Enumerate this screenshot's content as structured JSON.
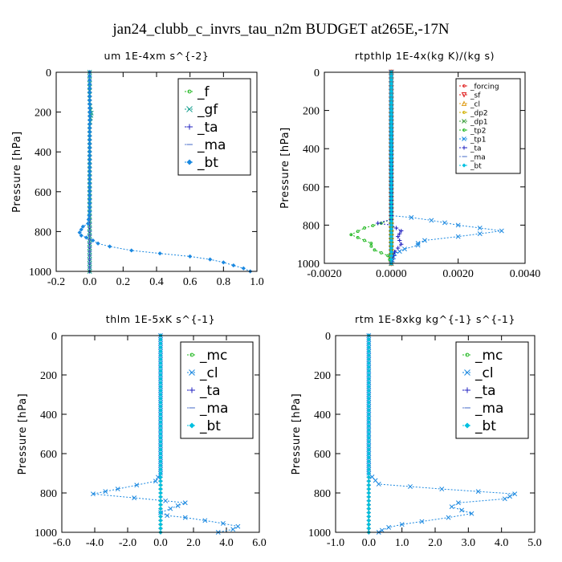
{
  "figure": {
    "title": "jan24_clubb_c_invrs_tau_n2m  BUDGET at265E,-17N"
  },
  "chart_data": [
    {
      "type": "line",
      "title": "um  1E-4xm s^{-2}",
      "ylabel": "Pressure [hPa]",
      "xlim": [
        -0.2,
        1.0
      ],
      "ylim": [
        1000,
        0
      ],
      "xticks": [
        -0.2,
        0.0,
        0.2,
        0.4,
        0.6,
        0.8,
        1.0
      ],
      "xtick_labels": [
        "-0.2",
        "0.0",
        "0.2",
        "0.4",
        "0.6",
        "0.8",
        "1.0"
      ],
      "yticks": [
        0,
        200,
        400,
        600,
        800,
        1000
      ],
      "ytick_labels": [
        "0",
        "200",
        "400",
        "600",
        "800",
        "1000"
      ],
      "legend_position": "top-right",
      "legend_size": "large",
      "series": [
        {
          "name": "_f",
          "color": "#22b822",
          "marker": "circle",
          "x": [
            0.0,
            0.0
          ],
          "y": [
            0,
            1000
          ]
        },
        {
          "name": "_gf",
          "color": "#1aa090",
          "marker": "x",
          "x": [
            0.0,
            0.0,
            0.005,
            0.01,
            0.005,
            0.0,
            0.0
          ],
          "y": [
            0,
            150,
            190,
            205,
            230,
            270,
            1000
          ]
        },
        {
          "name": "_ta",
          "color": "#2020c0",
          "marker": "plus",
          "x": [
            0.0,
            0.0
          ],
          "y": [
            0,
            1000
          ]
        },
        {
          "name": "_ma",
          "color": "#6080d0",
          "marker": "dash",
          "x": [
            0.0,
            0.0
          ],
          "y": [
            0,
            1000
          ]
        },
        {
          "name": "_bt",
          "color": "#1a88e0",
          "marker": "diamond",
          "x": [
            0.0,
            0.0,
            0.0,
            -0.01,
            -0.04,
            -0.05,
            -0.06,
            -0.05,
            -0.02,
            0.02,
            0.05,
            0.12,
            0.25,
            0.42,
            0.6,
            0.72,
            0.8,
            0.86,
            0.92,
            0.96
          ],
          "y": [
            0,
            200,
            700,
            760,
            775,
            790,
            805,
            820,
            830,
            845,
            860,
            875,
            895,
            910,
            925,
            940,
            955,
            970,
            985,
            1000
          ]
        }
      ]
    },
    {
      "type": "line",
      "title": "rtpthlp  1E-4x(kg K)/(kg s)",
      "ylabel": "Pressure [hPa]",
      "xlim": [
        -0.002,
        0.004
      ],
      "ylim": [
        1000,
        0
      ],
      "xticks": [
        -0.002,
        0.0,
        0.002,
        0.004
      ],
      "xtick_labels": [
        "-0.0020",
        "0.0000",
        "0.0020",
        "0.0040"
      ],
      "yticks": [
        0,
        200,
        400,
        600,
        800,
        1000
      ],
      "ytick_labels": [
        "0",
        "200",
        "400",
        "600",
        "800",
        "1000"
      ],
      "legend_position": "top-right",
      "legend_size": "small",
      "series": [
        {
          "name": "_forcing",
          "color": "#e02020",
          "marker": "circle",
          "x": [
            0,
            0
          ],
          "y": [
            0,
            1000
          ]
        },
        {
          "name": "_sf",
          "color": "#e02020",
          "marker": "triangle-down",
          "x": [
            0,
            0
          ],
          "y": [
            0,
            1000
          ]
        },
        {
          "name": "_cl",
          "color": "#e0a020",
          "marker": "triangle-up",
          "x": [
            0,
            0
          ],
          "y": [
            0,
            1000
          ]
        },
        {
          "name": "_dp2",
          "color": "#d0b000",
          "marker": "circle",
          "x": [
            0,
            0
          ],
          "y": [
            0,
            1000
          ]
        },
        {
          "name": "_dp1",
          "color": "#40a040",
          "marker": "x",
          "x": [
            0,
            0
          ],
          "y": [
            0,
            1000
          ]
        },
        {
          "name": "_tp2",
          "color": "#22b822",
          "marker": "circle",
          "x": [
            0.0,
            0.0,
            -0.0003,
            -0.0008,
            -0.0012,
            -0.0008,
            -0.0006,
            -0.0006,
            -0.0005,
            -0.0001,
            0.0
          ],
          "y": [
            0,
            770,
            790,
            815,
            850,
            880,
            895,
            910,
            930,
            960,
            1000
          ]
        },
        {
          "name": "_tp1",
          "color": "#1a88e0",
          "marker": "x",
          "x": [
            0.0,
            0.0,
            0.0006,
            0.0012,
            0.002,
            0.0033,
            0.002,
            0.001,
            0.0008,
            0.0008,
            0.0004,
            0.0001,
            0.0
          ],
          "y": [
            0,
            750,
            760,
            775,
            800,
            830,
            860,
            880,
            895,
            905,
            925,
            950,
            1000
          ]
        },
        {
          "name": "_ta",
          "color": "#2020c0",
          "marker": "plus",
          "x": [
            0.0,
            0.0,
            -0.0004,
            0.0,
            0.0003,
            0.0002,
            0.0003,
            0.0001,
            0.0
          ],
          "y": [
            0,
            770,
            790,
            800,
            830,
            860,
            900,
            940,
            1000
          ]
        },
        {
          "name": "_ma",
          "color": "#6080d0",
          "marker": "dash",
          "x": [
            0,
            0
          ],
          "y": [
            0,
            1000
          ]
        },
        {
          "name": "_bt",
          "color": "#00c0e0",
          "marker": "diamond",
          "x": [
            0,
            0
          ],
          "y": [
            0,
            1000
          ]
        }
      ]
    },
    {
      "type": "line",
      "title": "thlm  1E-5xK s^{-1}",
      "ylabel": "Pressure [hPa]",
      "xlim": [
        -6.0,
        6.0
      ],
      "ylim": [
        1000,
        0
      ],
      "xticks": [
        -6,
        -4,
        -2,
        0,
        2,
        4,
        6
      ],
      "xtick_labels": [
        "-6.0",
        "-4.0",
        "-2.0",
        "0.0",
        "2.0",
        "4.0",
        "6.0"
      ],
      "yticks": [
        0,
        200,
        400,
        600,
        800,
        1000
      ],
      "ytick_labels": [
        "0",
        "200",
        "400",
        "600",
        "800",
        "1000"
      ],
      "legend_position": "top-right",
      "legend_size": "large",
      "series": [
        {
          "name": "_mc",
          "color": "#22b822",
          "marker": "circle",
          "x": [
            0,
            0
          ],
          "y": [
            0,
            1000
          ]
        },
        {
          "name": "_cl",
          "color": "#1a88e0",
          "marker": "x",
          "x": [
            0.0,
            0.0,
            -0.3,
            -2.6,
            -4.1,
            -1.6,
            0.3,
            1.5,
            0.6,
            0.0,
            0.4,
            1.5,
            2.7,
            3.8,
            4.7,
            4.4,
            3.5
          ],
          "y": [
            0,
            700,
            740,
            780,
            805,
            825,
            840,
            850,
            880,
            900,
            915,
            925,
            940,
            955,
            970,
            985,
            1000
          ]
        },
        {
          "name": "_ta",
          "color": "#2020c0",
          "marker": "plus",
          "x": [
            0,
            0
          ],
          "y": [
            0,
            1000
          ]
        },
        {
          "name": "_ma",
          "color": "#6080d0",
          "marker": "dash",
          "x": [
            0,
            0
          ],
          "y": [
            0,
            1000
          ]
        },
        {
          "name": "_bt",
          "color": "#00c0e0",
          "marker": "diamond",
          "x": [
            0,
            0
          ],
          "y": [
            0,
            1000
          ]
        }
      ]
    },
    {
      "type": "line",
      "title": "rtm  1E-8xkg kg^{-1} s^{-1}",
      "ylabel": "Pressure [hPa]",
      "xlim": [
        -1.0,
        5.0
      ],
      "ylim": [
        1000,
        0
      ],
      "xticks": [
        -1,
        0,
        1,
        2,
        3,
        4,
        5
      ],
      "xtick_labels": [
        "-1.0",
        "0.0",
        "1.0",
        "2.0",
        "3.0",
        "4.0",
        "5.0"
      ],
      "yticks": [
        0,
        200,
        400,
        600,
        800,
        1000
      ],
      "ytick_labels": [
        "0",
        "200",
        "400",
        "600",
        "800",
        "1000"
      ],
      "legend_position": "top-right",
      "legend_size": "large",
      "series": [
        {
          "name": "_mc",
          "color": "#22b822",
          "marker": "circle",
          "x": [
            0,
            0
          ],
          "y": [
            0,
            1000
          ]
        },
        {
          "name": "_cl",
          "color": "#1a88e0",
          "marker": "x",
          "x": [
            0.0,
            0.0,
            0.3,
            2.2,
            4.4,
            4.1,
            2.7,
            2.5,
            3.1,
            2.4,
            1.6,
            1.0,
            0.6,
            0.4,
            0.3
          ],
          "y": [
            0,
            700,
            755,
            780,
            805,
            830,
            850,
            870,
            905,
            925,
            945,
            960,
            975,
            990,
            1000
          ]
        },
        {
          "name": "_ta",
          "color": "#2020c0",
          "marker": "plus",
          "x": [
            0,
            0
          ],
          "y": [
            0,
            1000
          ]
        },
        {
          "name": "_ma",
          "color": "#6080d0",
          "marker": "dash",
          "x": [
            0,
            0
          ],
          "y": [
            0,
            1000
          ]
        },
        {
          "name": "_bt",
          "color": "#00c0e0",
          "marker": "diamond",
          "x": [
            0,
            0
          ],
          "y": [
            0,
            1000
          ]
        }
      ]
    }
  ]
}
